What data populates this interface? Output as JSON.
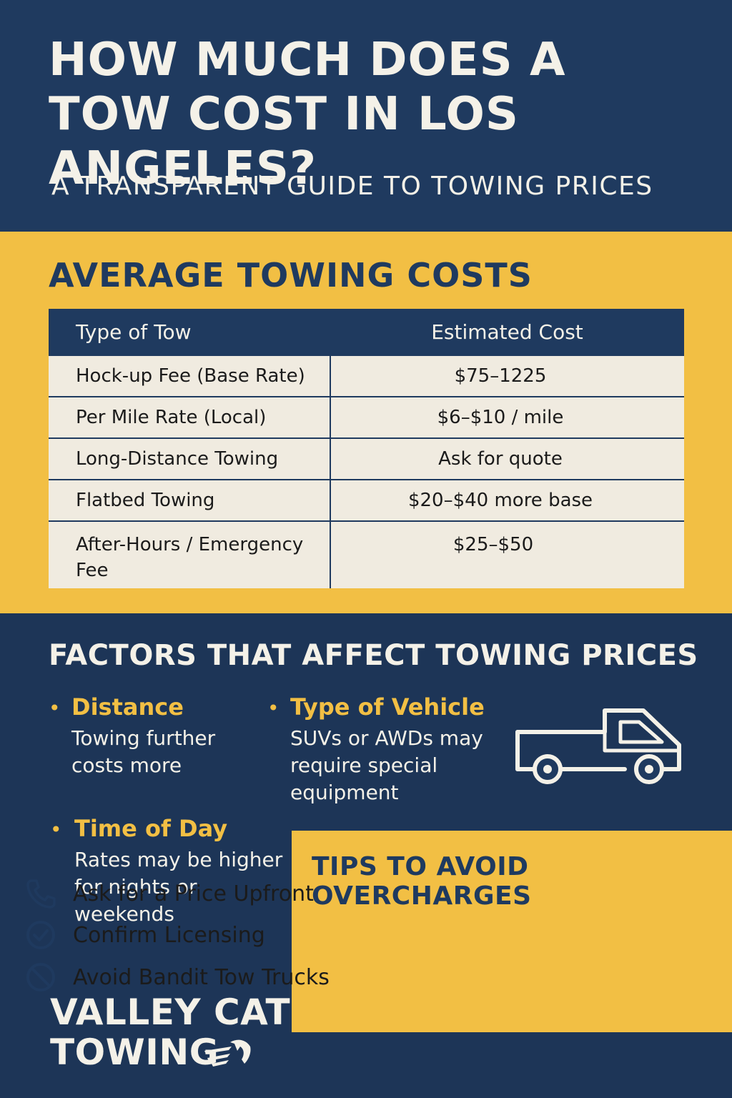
{
  "header": {
    "title": "HOW MUCH DOES A TOW COST IN LOS ANGELES?",
    "subtitle": "A TRANSPARENT GUIDE TO TOWING PRICES"
  },
  "costs": {
    "heading": "AVERAGE TOWING COSTS",
    "columns": [
      "Type of Tow",
      "Estimated Cost"
    ],
    "rows": [
      {
        "type": "Hock-up Fee (Base Rate)",
        "cost": "$75–1225"
      },
      {
        "type": "Per Mile Rate (Local)",
        "cost": "$6–$10 / mile"
      },
      {
        "type": "Long-Distance Towing",
        "cost": "Ask for quote"
      },
      {
        "type": "Flatbed Towing",
        "cost": "$20–$40 more base"
      },
      {
        "type": "After-Hours / Emergency Fee",
        "cost": "$25–$50"
      }
    ]
  },
  "factors": {
    "heading": "FACTORS THAT AFFECT TOWING PRICES",
    "items": [
      {
        "title": "Distance",
        "desc": "Towing further costs more"
      },
      {
        "title": "Type of Vehicle",
        "desc": "SUVs or AWDs may require special equipment"
      },
      {
        "title": "Time of Day",
        "desc": "Rates may be higher for nights or weekends"
      }
    ],
    "bullet": "•"
  },
  "tips": {
    "heading": "TIPS TO AVOID OVERCHARGES",
    "items": [
      {
        "icon": "phone-icon",
        "label": "Ask for a Price Upfront"
      },
      {
        "icon": "check-circle-icon",
        "label": "Confirm Licensing"
      },
      {
        "icon": "prohibited-icon",
        "label": "Avoid Bandit Tow Trucks"
      }
    ]
  },
  "brand": {
    "line1": "VALLEY CAT",
    "line2": "TOWING"
  },
  "colors": {
    "navy": "#1f3a5f",
    "yellow": "#f2bf44",
    "cream": "#f0ebe0"
  }
}
